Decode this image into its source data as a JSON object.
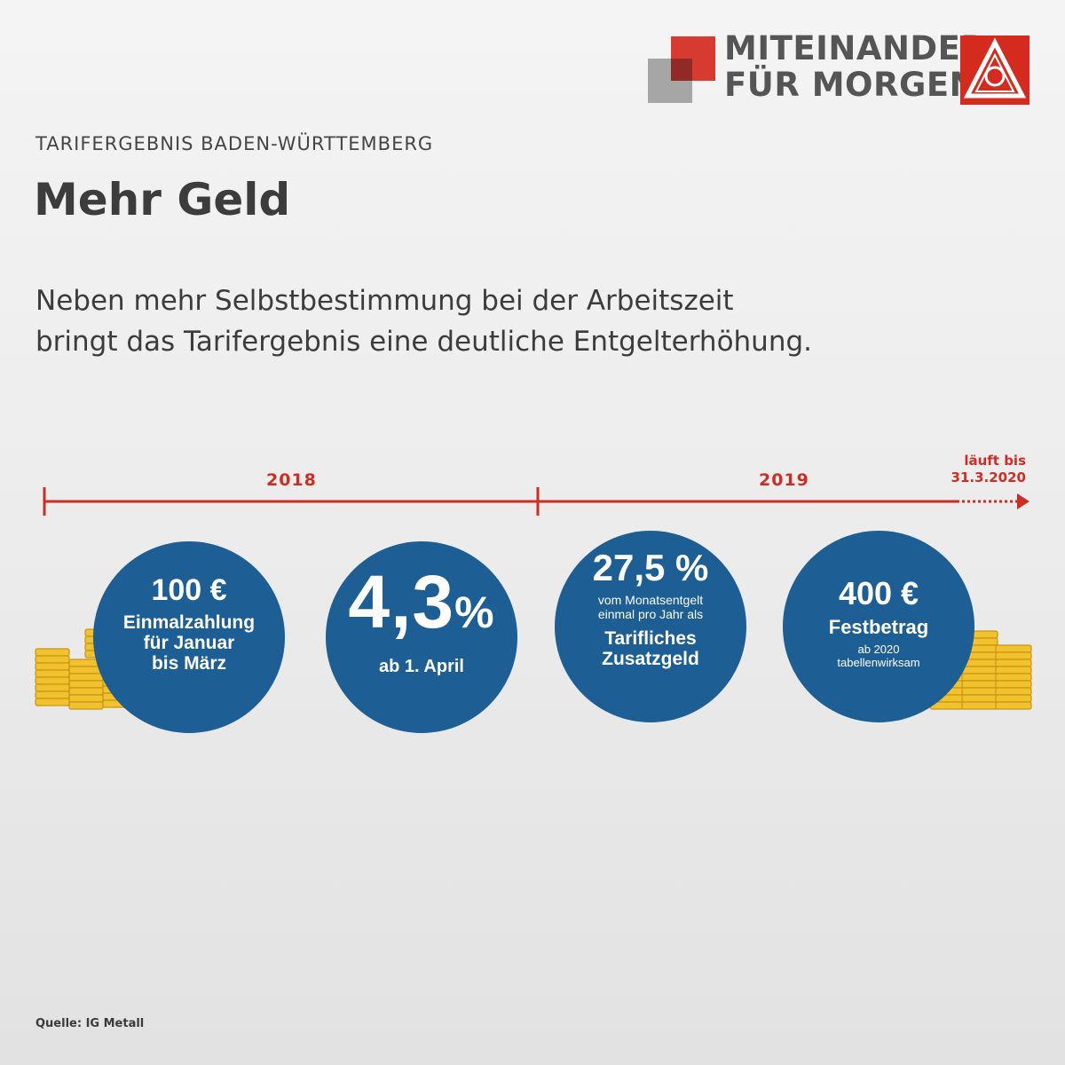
{
  "logo": {
    "slogan_line1": "MITEINANDER",
    "slogan_line2": "FÜR MORGEN",
    "emblem": "IG Metall emblem",
    "colors": {
      "red": "#d52b1e",
      "grey": "#a6a6a6"
    }
  },
  "header": {
    "kicker": "TARIFERGEBNIS BADEN-WÜRTTEMBERG",
    "title": "Mehr Geld"
  },
  "lead": {
    "line1": "Neben mehr Selbstbestimmung bei der Arbeitszeit",
    "line2": "bringt das Tarifergebnis eine deutliche Entgelterhöhung."
  },
  "timeline": {
    "year1": "2018",
    "year2": "2019",
    "end_note_line1": "läuft bis",
    "end_note_line2": "31.3.2020",
    "color": "#cf2c22"
  },
  "items": [
    {
      "big": "100 €",
      "lines": [
        "Einmalzahlung",
        "für Januar",
        "bis März"
      ]
    },
    {
      "big_number": "4,3",
      "big_unit": "%",
      "text": "ab 1. April"
    },
    {
      "big": "27,5 %",
      "small_lines": [
        "vom Monatsentgelt",
        "einmal pro Jahr als"
      ],
      "lines": [
        "Tarifliches",
        "Zusatzgeld"
      ]
    },
    {
      "big": "400 €",
      "text": "Festbetrag",
      "small_lines": [
        "ab 2020",
        "tabellenwirksam"
      ]
    }
  ],
  "circle_color": "#1d5e94",
  "coin_color": "#f2c12e",
  "source": "Quelle: IG Metall"
}
